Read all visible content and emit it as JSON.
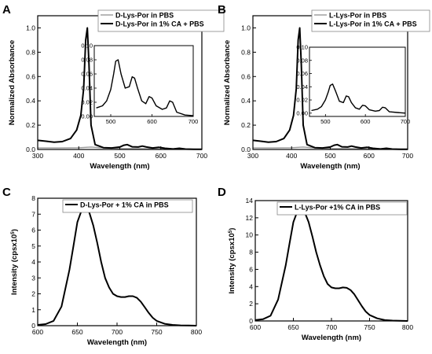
{
  "chart_data": [
    {
      "panel": "A",
      "type": "line",
      "xlabel": "Wavelength (nm)",
      "ylabel": "Normalized Absorbance",
      "xlim": [
        300,
        700
      ],
      "ylim": [
        0,
        1.1
      ],
      "xticks": [
        300,
        400,
        500,
        600,
        700
      ],
      "yticks": [
        0.0,
        0.2,
        0.4,
        0.6,
        0.8,
        1.0
      ],
      "yticks_text": [
        "0.0",
        "0.2",
        "0.4",
        "0.6",
        "0.8",
        "1.0"
      ],
      "legend_position": "top-right",
      "series": [
        {
          "name": "D-Lys-Por in PBS",
          "color": "#999999",
          "x": [
            300,
            350,
            400,
            430,
            450,
            500,
            550,
            600,
            650,
            700
          ],
          "y": [
            0.012,
            0.012,
            0.014,
            0.02,
            0.015,
            0.008,
            0.006,
            0.004,
            0.003,
            0.002
          ]
        },
        {
          "name": "D-Lys-Por in 1% CA + PBS",
          "color": "#000000",
          "x": [
            300,
            320,
            340,
            360,
            380,
            395,
            405,
            412,
            417,
            421,
            425,
            430,
            440,
            460,
            480,
            500,
            510,
            518,
            530,
            545,
            555,
            565,
            580,
            595,
            610,
            630,
            645,
            660,
            680,
            700
          ],
          "y": [
            0.075,
            0.068,
            0.06,
            0.065,
            0.09,
            0.16,
            0.28,
            0.5,
            0.9,
            1.0,
            0.7,
            0.2,
            0.04,
            0.015,
            0.012,
            0.02,
            0.035,
            0.04,
            0.022,
            0.02,
            0.028,
            0.02,
            0.012,
            0.018,
            0.01,
            0.004,
            0.01,
            0.003,
            0.002,
            0.001
          ]
        }
      ],
      "inset": {
        "xlim": [
          460,
          700
        ],
        "ylim": [
          0,
          0.1
        ],
        "xticks": [
          500,
          600,
          700
        ],
        "yticks": [
          0.0,
          0.02,
          0.04,
          0.06,
          0.08,
          0.1
        ],
        "yticks_text": [
          "0.00",
          "0.02",
          "0.04",
          "0.06",
          "0.08",
          "0.10"
        ],
        "x": [
          465,
          480,
          490,
          500,
          507,
          512,
          518,
          525,
          535,
          545,
          552,
          558,
          565,
          575,
          585,
          593,
          600,
          610,
          625,
          635,
          643,
          650,
          660,
          680,
          700
        ],
        "y": [
          0.012,
          0.015,
          0.022,
          0.038,
          0.06,
          0.078,
          0.08,
          0.06,
          0.04,
          0.042,
          0.056,
          0.054,
          0.04,
          0.022,
          0.018,
          0.028,
          0.026,
          0.015,
          0.01,
          0.012,
          0.022,
          0.02,
          0.006,
          0.002,
          0.001
        ]
      }
    },
    {
      "panel": "B",
      "type": "line",
      "xlabel": "Wavelength (nm)",
      "ylabel": "Normalized Absorbance",
      "xlim": [
        300,
        700
      ],
      "ylim": [
        0,
        1.1
      ],
      "xticks": [
        300,
        400,
        500,
        600,
        700
      ],
      "yticks": [
        0.0,
        0.2,
        0.4,
        0.6,
        0.8,
        1.0
      ],
      "yticks_text": [
        "0.0",
        "0.2",
        "0.4",
        "0.6",
        "0.8",
        "1.0"
      ],
      "legend_position": "top-right",
      "series": [
        {
          "name": "L-Lys-Por in PBS",
          "color": "#999999",
          "x": [
            300,
            350,
            400,
            430,
            450,
            500,
            550,
            600,
            650,
            700
          ],
          "y": [
            0.012,
            0.012,
            0.014,
            0.02,
            0.015,
            0.008,
            0.006,
            0.004,
            0.003,
            0.002
          ]
        },
        {
          "name": "L-Lys-Por in 1% CA + PBS",
          "color": "#000000",
          "x": [
            300,
            320,
            340,
            360,
            380,
            395,
            405,
            412,
            417,
            421,
            425,
            430,
            440,
            460,
            480,
            500,
            510,
            518,
            530,
            545,
            555,
            565,
            580,
            595,
            610,
            630,
            645,
            660,
            680,
            700
          ],
          "y": [
            0.075,
            0.068,
            0.06,
            0.065,
            0.09,
            0.16,
            0.28,
            0.5,
            0.9,
            1.0,
            0.7,
            0.2,
            0.04,
            0.015,
            0.012,
            0.02,
            0.035,
            0.04,
            0.022,
            0.02,
            0.028,
            0.02,
            0.012,
            0.018,
            0.01,
            0.004,
            0.01,
            0.003,
            0.002,
            0.001
          ]
        }
      ],
      "inset": {
        "xlim": [
          460,
          700
        ],
        "ylim": [
          -0.005,
          0.1
        ],
        "xticks": [
          500,
          600,
          700
        ],
        "yticks": [
          0.0,
          0.02,
          0.04,
          0.06,
          0.08,
          0.1
        ],
        "yticks_text": [
          "0.00",
          "0.02",
          "0.04",
          "0.06",
          "0.08",
          "0.10"
        ],
        "x": [
          465,
          480,
          490,
          500,
          507,
          512,
          518,
          525,
          535,
          545,
          552,
          558,
          565,
          575,
          585,
          593,
          600,
          610,
          625,
          635,
          643,
          650,
          660,
          680,
          700
        ],
        "y": [
          0.004,
          0.006,
          0.01,
          0.02,
          0.032,
          0.042,
          0.044,
          0.034,
          0.018,
          0.016,
          0.026,
          0.025,
          0.016,
          0.008,
          0.006,
          0.012,
          0.011,
          0.005,
          0.003,
          0.004,
          0.009,
          0.008,
          0.002,
          0.001,
          0.0
        ]
      }
    },
    {
      "panel": "C",
      "type": "line",
      "xlabel": "Wavelength (nm)",
      "ylabel": "Intensity (cpsx10^5)",
      "xlim": [
        600,
        800
      ],
      "ylim": [
        0,
        8
      ],
      "xticks": [
        600,
        650,
        700,
        750,
        800
      ],
      "yticks": [
        0,
        1,
        2,
        3,
        4,
        5,
        6,
        7,
        8
      ],
      "yticks_text": [
        "0",
        "1",
        "2",
        "3",
        "4",
        "5",
        "6",
        "7",
        "8"
      ],
      "legend_position": "top-right",
      "series": [
        {
          "name": "D-Lys-Por + 1% CA in PBS",
          "color": "#000000",
          "x": [
            600,
            610,
            620,
            630,
            640,
            645,
            650,
            655,
            660,
            665,
            670,
            675,
            680,
            685,
            690,
            695,
            700,
            705,
            710,
            715,
            720,
            725,
            730,
            735,
            740,
            745,
            750,
            760,
            770,
            780,
            790,
            800
          ],
          "y": [
            0.05,
            0.1,
            0.3,
            1.2,
            3.5,
            5.0,
            6.5,
            7.2,
            7.4,
            7.1,
            6.3,
            5.2,
            4.0,
            3.0,
            2.4,
            2.0,
            1.85,
            1.8,
            1.8,
            1.85,
            1.85,
            1.75,
            1.5,
            1.15,
            0.8,
            0.5,
            0.3,
            0.12,
            0.05,
            0.02,
            0.01,
            0.0
          ]
        }
      ]
    },
    {
      "panel": "D",
      "type": "line",
      "xlabel": "Wavelength (nm)",
      "ylabel": "Intensity (cpsx10^5)",
      "xlim": [
        600,
        800
      ],
      "ylim": [
        0,
        14
      ],
      "xticks": [
        600,
        650,
        700,
        750,
        800
      ],
      "yticks": [
        0,
        2,
        4,
        6,
        8,
        10,
        12,
        14
      ],
      "yticks_text": [
        "0",
        "2",
        "4",
        "6",
        "8",
        "10",
        "12",
        "14"
      ],
      "legend_position": "top-right",
      "series": [
        {
          "name": "L-Lys-Por +1% CA in PBS",
          "color": "#000000",
          "x": [
            600,
            610,
            620,
            630,
            640,
            645,
            650,
            655,
            660,
            665,
            670,
            675,
            680,
            685,
            690,
            695,
            700,
            705,
            710,
            715,
            720,
            725,
            730,
            735,
            740,
            745,
            750,
            760,
            770,
            780,
            790,
            800
          ],
          "y": [
            0.1,
            0.2,
            0.6,
            2.5,
            6.5,
            9.0,
            11.5,
            12.7,
            13.0,
            12.6,
            11.5,
            9.8,
            8.0,
            6.5,
            5.2,
            4.3,
            3.9,
            3.8,
            3.8,
            3.9,
            3.85,
            3.6,
            3.1,
            2.4,
            1.7,
            1.1,
            0.7,
            0.3,
            0.1,
            0.05,
            0.02,
            0.0
          ]
        }
      ]
    }
  ]
}
